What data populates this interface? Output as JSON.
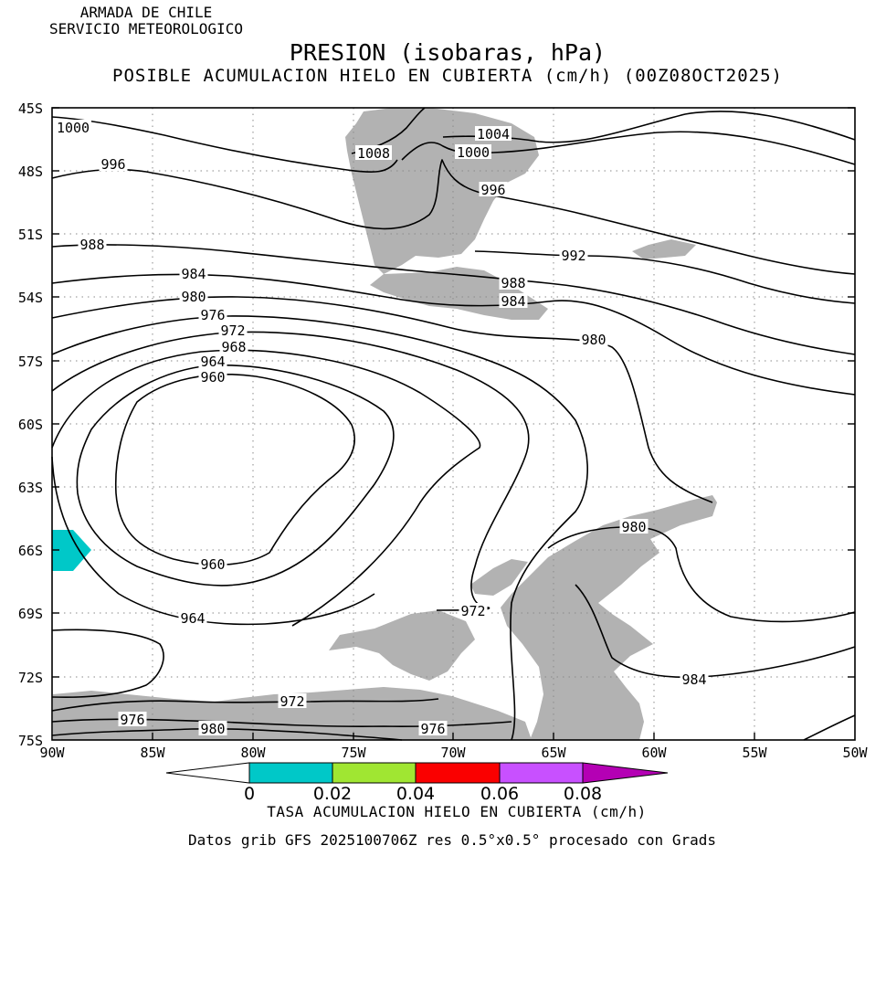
{
  "header": {
    "org_line1": "ARMADA DE CHILE",
    "org_line2": "SERVICIO METEOROLOGICO",
    "title": "PRESION (isobaras, hPa)",
    "subtitle": "POSIBLE ACUMULACION HIELO EN CUBIERTA (cm/h) (00Z08OCT2025)"
  },
  "map": {
    "lon_range": [
      -90,
      -50
    ],
    "lat_range": [
      -75,
      -45
    ],
    "lon_ticks": [
      "90W",
      "85W",
      "80W",
      "75W",
      "70W",
      "65W",
      "60W",
      "55W",
      "50W"
    ],
    "lat_ticks": [
      "45S",
      "48S",
      "51S",
      "54S",
      "57S",
      "60S",
      "63S",
      "66S",
      "69S",
      "72S",
      "75S"
    ],
    "grid": "dotted",
    "land_color": "#b2b2b2",
    "isobar_color": "#000000",
    "isobar_labels": [
      {
        "text": "1000"
      },
      {
        "text": "996"
      },
      {
        "text": "988"
      },
      {
        "text": "984"
      },
      {
        "text": "980"
      },
      {
        "text": "976"
      },
      {
        "text": "972"
      },
      {
        "text": "968"
      },
      {
        "text": "964"
      },
      {
        "text": "960"
      },
      {
        "text": "960"
      },
      {
        "text": "964"
      },
      {
        "text": "1008"
      },
      {
        "text": "1004"
      },
      {
        "text": "1000"
      },
      {
        "text": "996"
      },
      {
        "text": "992"
      },
      {
        "text": "988"
      },
      {
        "text": "984"
      },
      {
        "text": "980"
      },
      {
        "text": "980"
      },
      {
        "text": "972"
      },
      {
        "text": "984"
      },
      {
        "text": "972"
      },
      {
        "text": "976"
      },
      {
        "text": "980"
      },
      {
        "text": "976"
      }
    ]
  },
  "colorbar": {
    "tick_labels": [
      "0",
      "0.02",
      "0.04",
      "0.06",
      "0.08"
    ],
    "colors": [
      "#ffffff",
      "#00c8c8",
      "#a0e632",
      "#fa0000",
      "#c850ff",
      "#b400b4"
    ],
    "label": "TASA ACUMULACION HIELO EN CUBIERTA (cm/h)"
  },
  "footer": "Datos grib GFS 2025100706Z res 0.5°x0.5° procesado con Grads"
}
